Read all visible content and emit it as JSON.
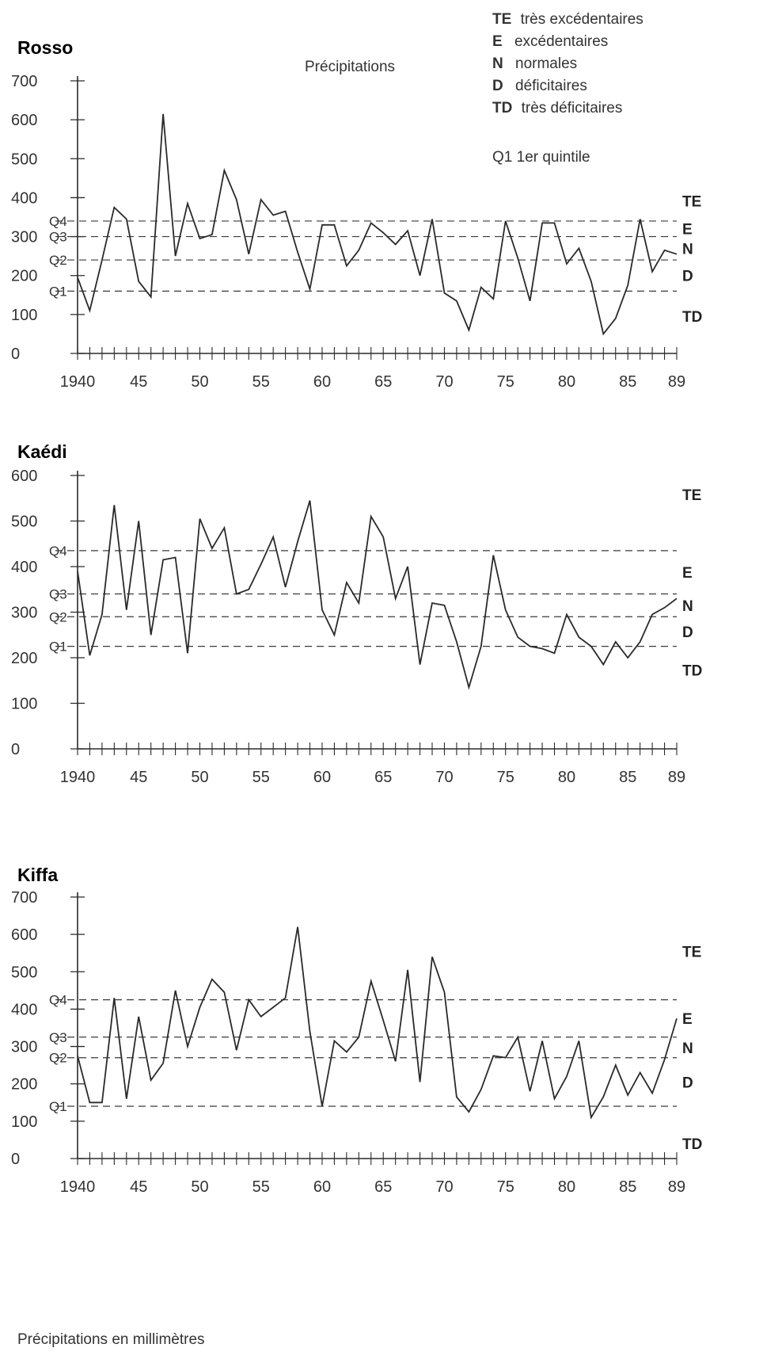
{
  "header": {
    "subtitle": "Précipitations",
    "legend": [
      {
        "code": "TE",
        "text": "très excédentaires"
      },
      {
        "code": "E",
        "text": "excédentaires"
      },
      {
        "code": "N",
        "text": "normales"
      },
      {
        "code": "D",
        "text": "déficitaires"
      },
      {
        "code": "TD",
        "text": "très déficitaires"
      }
    ],
    "quintile_note": "Q1 1er quintile"
  },
  "footer": {
    "note": "Précipitations en millimètres"
  },
  "colors": {
    "line": "#2a2a2a",
    "axis": "#2a2a2a",
    "dashed": "#3a3a3a"
  },
  "chart_data": [
    {
      "type": "line",
      "title": "Rosso",
      "x_tick_labels": [
        "1940",
        "45",
        "50",
        "55",
        "60",
        "65",
        "70",
        "75",
        "80",
        "85",
        "89"
      ],
      "x_ticks": [
        1940,
        1945,
        1950,
        1955,
        1960,
        1965,
        1970,
        1975,
        1980,
        1985,
        1989
      ],
      "y_ticks": [
        0,
        100,
        200,
        300,
        400,
        500,
        600,
        700
      ],
      "ylim": [
        0,
        700
      ],
      "xlim": [
        1940,
        1989
      ],
      "quintiles": [
        {
          "label": "Q1",
          "value": 160
        },
        {
          "label": "Q2",
          "value": 240
        },
        {
          "label": "Q3",
          "value": 300
        },
        {
          "label": "Q4",
          "value": 340
        }
      ],
      "class_labels": [
        "TE",
        "E",
        "N",
        "D",
        "TD"
      ],
      "series": [
        {
          "x": [
            1940,
            1941,
            1942,
            1943,
            1944,
            1945,
            1946,
            1947,
            1948,
            1949,
            1950,
            1951,
            1952,
            1953,
            1954,
            1955,
            1956,
            1957,
            1958,
            1959,
            1960,
            1961,
            1962,
            1963,
            1964,
            1965,
            1966,
            1967,
            1968,
            1969,
            1970,
            1971,
            1972,
            1973,
            1974,
            1975,
            1976,
            1977,
            1978,
            1979,
            1980,
            1981,
            1982,
            1983,
            1984,
            1985,
            1986,
            1987,
            1988,
            1989
          ],
          "values": [
            195,
            110,
            240,
            375,
            345,
            185,
            145,
            615,
            250,
            385,
            295,
            305,
            470,
            395,
            255,
            395,
            355,
            365,
            260,
            165,
            330,
            330,
            225,
            265,
            335,
            310,
            280,
            315,
            200,
            345,
            155,
            135,
            60,
            170,
            140,
            340,
            245,
            135,
            335,
            335,
            230,
            270,
            185,
            50,
            90,
            175,
            345,
            210,
            265,
            255
          ]
        }
      ]
    },
    {
      "type": "line",
      "title": "Kaédi",
      "x_tick_labels": [
        "1940",
        "45",
        "50",
        "55",
        "60",
        "65",
        "70",
        "75",
        "80",
        "85",
        "89"
      ],
      "x_ticks": [
        1940,
        1945,
        1950,
        1955,
        1960,
        1965,
        1970,
        1975,
        1980,
        1985,
        1989
      ],
      "y_ticks": [
        0,
        100,
        200,
        300,
        400,
        500,
        600
      ],
      "ylim": [
        0,
        600
      ],
      "xlim": [
        1940,
        1989
      ],
      "quintiles": [
        {
          "label": "Q1",
          "value": 225
        },
        {
          "label": "Q2",
          "value": 290
        },
        {
          "label": "Q3",
          "value": 340
        },
        {
          "label": "Q4",
          "value": 435
        }
      ],
      "class_labels": [
        "TE",
        "E",
        "N",
        "D",
        "TD"
      ],
      "series": [
        {
          "x": [
            1940,
            1941,
            1942,
            1943,
            1944,
            1945,
            1946,
            1947,
            1948,
            1949,
            1950,
            1951,
            1952,
            1953,
            1954,
            1955,
            1956,
            1957,
            1958,
            1959,
            1960,
            1961,
            1962,
            1963,
            1964,
            1965,
            1966,
            1967,
            1968,
            1969,
            1970,
            1971,
            1972,
            1973,
            1974,
            1975,
            1976,
            1977,
            1978,
            1979,
            1980,
            1981,
            1982,
            1983,
            1984,
            1985,
            1986,
            1987,
            1988,
            1989
          ],
          "values": [
            390,
            205,
            295,
            535,
            305,
            500,
            250,
            415,
            420,
            210,
            505,
            440,
            485,
            340,
            350,
            405,
            465,
            355,
            455,
            545,
            305,
            250,
            365,
            320,
            510,
            465,
            330,
            400,
            185,
            320,
            315,
            235,
            135,
            225,
            425,
            305,
            245,
            225,
            220,
            210,
            295,
            245,
            225,
            185,
            235,
            200,
            235,
            295,
            310,
            330
          ]
        }
      ]
    },
    {
      "type": "line",
      "title": "Kiffa",
      "x_tick_labels": [
        "1940",
        "45",
        "50",
        "55",
        "60",
        "65",
        "70",
        "75",
        "80",
        "85",
        "89"
      ],
      "x_ticks": [
        1940,
        1945,
        1950,
        1955,
        1960,
        1965,
        1970,
        1975,
        1980,
        1985,
        1989
      ],
      "y_ticks": [
        0,
        100,
        200,
        300,
        400,
        500,
        600,
        700
      ],
      "ylim": [
        0,
        700
      ],
      "xlim": [
        1940,
        1989
      ],
      "quintiles": [
        {
          "label": "Q1",
          "value": 140
        },
        {
          "label": "Q2",
          "value": 270
        },
        {
          "label": "Q3",
          "value": 325
        },
        {
          "label": "Q4",
          "value": 425
        }
      ],
      "class_labels": [
        "TE",
        "E",
        "N",
        "D",
        "TD"
      ],
      "series": [
        {
          "x": [
            1940,
            1941,
            1942,
            1943,
            1944,
            1945,
            1946,
            1947,
            1948,
            1949,
            1950,
            1951,
            1952,
            1953,
            1954,
            1955,
            1956,
            1957,
            1958,
            1959,
            1960,
            1961,
            1962,
            1963,
            1964,
            1965,
            1966,
            1967,
            1968,
            1969,
            1970,
            1971,
            1972,
            1973,
            1974,
            1975,
            1976,
            1977,
            1978,
            1979,
            1980,
            1981,
            1982,
            1983,
            1984,
            1985,
            1986,
            1987,
            1988,
            1989
          ],
          "values": [
            275,
            150,
            150,
            430,
            160,
            380,
            210,
            255,
            450,
            300,
            405,
            480,
            445,
            290,
            425,
            380,
            405,
            430,
            620,
            340,
            140,
            315,
            285,
            325,
            475,
            370,
            260,
            505,
            205,
            540,
            445,
            165,
            125,
            185,
            275,
            270,
            325,
            180,
            315,
            160,
            220,
            315,
            110,
            165,
            250,
            170,
            230,
            175,
            265,
            375
          ]
        }
      ]
    }
  ]
}
